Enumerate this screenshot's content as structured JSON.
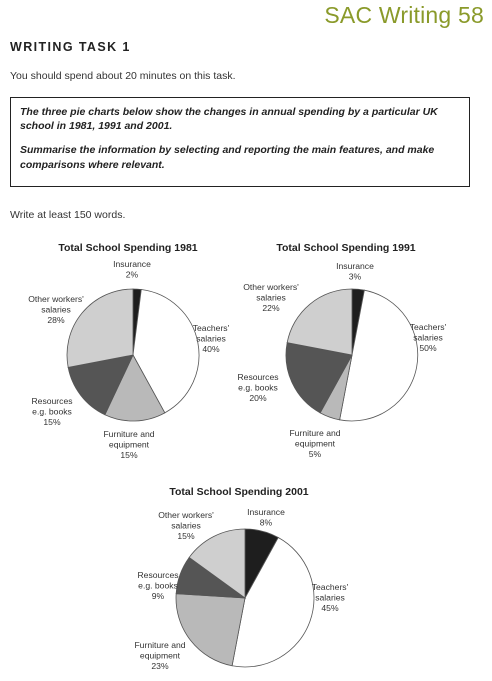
{
  "header": {
    "brand": "SAC Writing 58",
    "task_heading": "WRITING TASK 1",
    "instruction": "You should spend about 20 minutes on this task."
  },
  "prompt": {
    "line1": "The three pie charts below show the changes in annual spending by a particular UK school in 1981, 1991 and 2001.",
    "line2": "Summarise the information by selecting and reporting the main features, and make comparisons where relevant."
  },
  "footer_instruction": "Write at least 150 words.",
  "colors": {
    "insurance": "#1e1e1e",
    "teachers": "#ffffff",
    "furniture": "#b9b9b9",
    "resources": "#555555",
    "other": "#cfcfcf",
    "stroke": "#555555"
  },
  "chart_data": [
    {
      "type": "pie",
      "title": "Total School Spending 1981",
      "slices": [
        {
          "key": "insurance",
          "label": [
            "Insurance"
          ],
          "value": 2,
          "value_label": "2%"
        },
        {
          "key": "teachers",
          "label": [
            "Teachers'",
            "salaries"
          ],
          "value": 40,
          "value_label": "40%"
        },
        {
          "key": "furniture",
          "label": [
            "Furniture and",
            "equipment"
          ],
          "value": 15,
          "value_label": "15%"
        },
        {
          "key": "resources",
          "label": [
            "Resources",
            "e.g. books"
          ],
          "value": 15,
          "value_label": "15%"
        },
        {
          "key": "other",
          "label": [
            "Other workers'",
            "salaries"
          ],
          "value": 28,
          "value_label": "28%"
        }
      ]
    },
    {
      "type": "pie",
      "title": "Total School Spending 1991",
      "slices": [
        {
          "key": "insurance",
          "label": [
            "Insurance"
          ],
          "value": 3,
          "value_label": "3%"
        },
        {
          "key": "teachers",
          "label": [
            "Teachers'",
            "salaries"
          ],
          "value": 50,
          "value_label": "50%"
        },
        {
          "key": "furniture",
          "label": [
            "Furniture and",
            "equipment"
          ],
          "value": 5,
          "value_label": "5%"
        },
        {
          "key": "resources",
          "label": [
            "Resources",
            "e.g. books"
          ],
          "value": 20,
          "value_label": "20%"
        },
        {
          "key": "other",
          "label": [
            "Other workers'",
            "salaries"
          ],
          "value": 22,
          "value_label": "22%"
        }
      ]
    },
    {
      "type": "pie",
      "title": "Total School Spending 2001",
      "slices": [
        {
          "key": "insurance",
          "label": [
            "Insurance"
          ],
          "value": 8,
          "value_label": "8%"
        },
        {
          "key": "teachers",
          "label": [
            "Teachers'",
            "salaries"
          ],
          "value": 45,
          "value_label": "45%"
        },
        {
          "key": "furniture",
          "label": [
            "Furniture and",
            "equipment"
          ],
          "value": 23,
          "value_label": "23%"
        },
        {
          "key": "resources",
          "label": [
            "Resources",
            "e.g. books"
          ],
          "value": 9,
          "value_label": "9%"
        },
        {
          "key": "other",
          "label": [
            "Other workers'",
            "salaries"
          ],
          "value": 15,
          "value_label": "15%"
        }
      ]
    }
  ]
}
